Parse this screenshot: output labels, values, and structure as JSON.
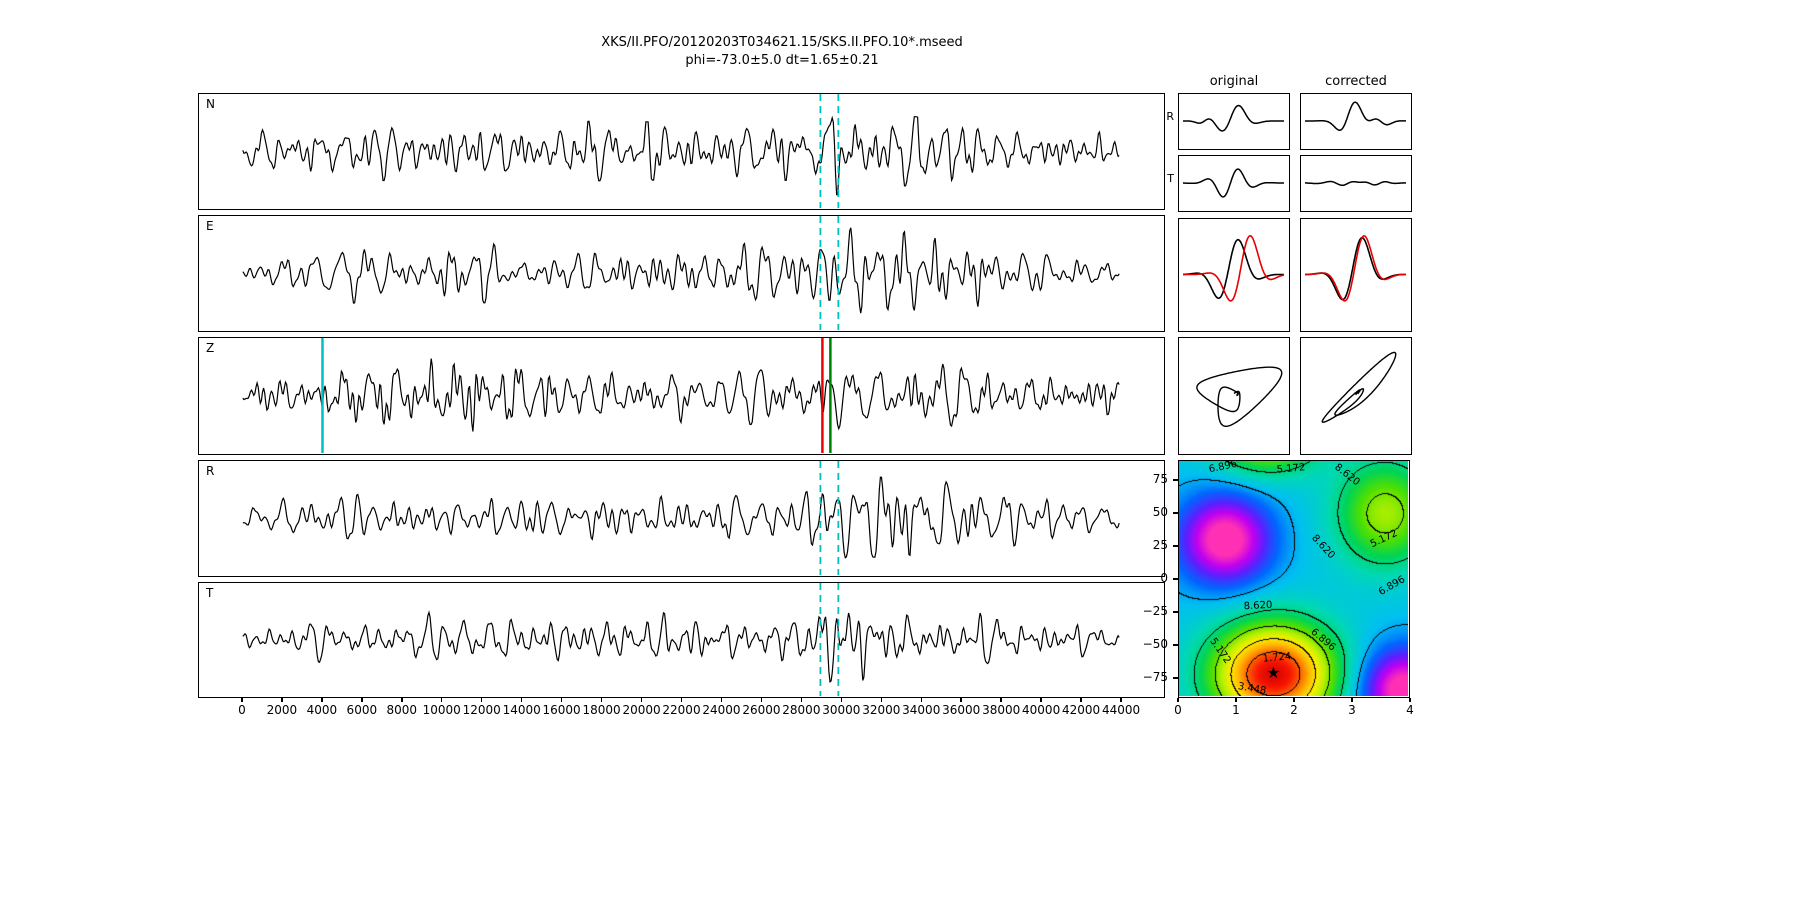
{
  "title": {
    "line1": "XKS/II.PFO/20120203T034621.15/SKS.II.PFO.10*.mseed",
    "line2": "phi=-73.0±5.0 dt=1.65±0.21"
  },
  "colors": {
    "cyan": "#00bfbf",
    "red": "#f20000",
    "green": "#008000",
    "trace": "#000000",
    "compare_red": "#e60000"
  },
  "chart_data": {
    "type": "seismogram-splitting-analysis",
    "result": {
      "phi_deg": -73.0,
      "phi_err_deg": 5.0,
      "dt_s": 1.65,
      "dt_err_s": 0.21
    },
    "main_panels": {
      "xlim": [
        -2200,
        46200
      ],
      "xticks": [
        0,
        2000,
        4000,
        6000,
        8000,
        10000,
        12000,
        14000,
        16000,
        18000,
        20000,
        22000,
        24000,
        26000,
        28000,
        30000,
        32000,
        34000,
        36000,
        38000,
        40000,
        42000,
        44000
      ],
      "window": {
        "start": 29000,
        "end": 29900
      },
      "panels": [
        {
          "label": "N",
          "seed": 101,
          "envelope": [
            [
              0,
              0.45
            ],
            [
              1500,
              0.75
            ],
            [
              6000,
              0.85
            ],
            [
              12000,
              0.8
            ],
            [
              18000,
              0.85
            ],
            [
              24000,
              0.8
            ],
            [
              28500,
              0.85
            ],
            [
              29400,
              1.35
            ],
            [
              30500,
              1.15
            ],
            [
              33000,
              1.0
            ],
            [
              38000,
              0.85
            ],
            [
              42000,
              0.65
            ],
            [
              44000,
              0.5
            ]
          ],
          "markers": [
            {
              "x": 29000,
              "color": "cyan",
              "style": "dashed"
            },
            {
              "x": 29900,
              "color": "cyan",
              "style": "dashed"
            }
          ]
        },
        {
          "label": "E",
          "seed": 202,
          "envelope": [
            [
              0,
              0.4
            ],
            [
              3000,
              0.85
            ],
            [
              7000,
              1.0
            ],
            [
              12000,
              0.85
            ],
            [
              18000,
              0.8
            ],
            [
              24000,
              0.8
            ],
            [
              28800,
              0.95
            ],
            [
              29600,
              1.45
            ],
            [
              31500,
              1.35
            ],
            [
              33500,
              1.3
            ],
            [
              36000,
              1.0
            ],
            [
              40000,
              0.85
            ],
            [
              44000,
              0.45
            ]
          ],
          "markers": [
            {
              "x": 29000,
              "color": "cyan",
              "style": "dashed"
            },
            {
              "x": 29900,
              "color": "cyan",
              "style": "dashed"
            }
          ]
        },
        {
          "label": "Z",
          "seed": 303,
          "envelope": [
            [
              0,
              0.45
            ],
            [
              3600,
              0.6
            ],
            [
              4200,
              1.2
            ],
            [
              6000,
              1.15
            ],
            [
              9000,
              1.25
            ],
            [
              12500,
              1.6
            ],
            [
              14000,
              1.45
            ],
            [
              16000,
              1.0
            ],
            [
              20000,
              0.85
            ],
            [
              25000,
              0.8
            ],
            [
              29000,
              1.0
            ],
            [
              31000,
              1.05
            ],
            [
              35000,
              0.9
            ],
            [
              40000,
              0.8
            ],
            [
              44000,
              0.5
            ]
          ],
          "markers": [
            {
              "x": 4000,
              "color": "cyan",
              "style": "solid"
            },
            {
              "x": 29100,
              "color": "red",
              "style": "solid"
            },
            {
              "x": 29500,
              "color": "green",
              "style": "solid"
            }
          ]
        },
        {
          "label": "R",
          "seed": 404,
          "envelope": [
            [
              0,
              0.4
            ],
            [
              4000,
              0.75
            ],
            [
              10000,
              0.85
            ],
            [
              16000,
              0.75
            ],
            [
              22000,
              0.7
            ],
            [
              27000,
              0.75
            ],
            [
              29200,
              1.1
            ],
            [
              30000,
              1.5
            ],
            [
              31500,
              1.3
            ],
            [
              33500,
              1.65
            ],
            [
              35500,
              1.2
            ],
            [
              38000,
              0.9
            ],
            [
              41000,
              0.75
            ],
            [
              44000,
              0.4
            ]
          ],
          "markers": [
            {
              "x": 29000,
              "color": "cyan",
              "style": "dashed"
            },
            {
              "x": 29900,
              "color": "cyan",
              "style": "dashed"
            }
          ]
        },
        {
          "label": "T",
          "seed": 505,
          "envelope": [
            [
              0,
              0.4
            ],
            [
              4000,
              0.7
            ],
            [
              10000,
              0.8
            ],
            [
              16000,
              0.85
            ],
            [
              22000,
              0.75
            ],
            [
              28000,
              0.8
            ],
            [
              29400,
              1.4
            ],
            [
              30800,
              1.25
            ],
            [
              33000,
              0.9
            ],
            [
              36000,
              0.8
            ],
            [
              40000,
              0.7
            ],
            [
              44000,
              0.4
            ]
          ],
          "markers": [
            {
              "x": 29000,
              "color": "cyan",
              "style": "dashed"
            },
            {
              "x": 29900,
              "color": "cyan",
              "style": "dashed"
            }
          ]
        }
      ]
    },
    "comparison": {
      "col_labels": [
        "original",
        "corrected"
      ],
      "row_labels": [
        "R",
        "T"
      ],
      "rt": {
        "R": {
          "original": [
            {
              "f": 2.4,
              "c": 0.5,
              "w": 0.17,
              "a": 0.8,
              "ph": 0.6
            },
            {
              "f": 3.0,
              "c": 0.22,
              "w": 0.1,
              "a": 0.18,
              "ph": 0
            }
          ],
          "corrected": [
            {
              "f": 2.4,
              "c": 0.46,
              "w": 0.15,
              "a": 0.95,
              "ph": 0.8
            },
            {
              "f": 2.8,
              "c": 0.75,
              "w": 0.12,
              "a": -0.25,
              "ph": 0
            }
          ]
        },
        "T": {
          "original": [
            {
              "f": 3.0,
              "c": 0.47,
              "w": 0.2,
              "a": 0.75,
              "ph": 0
            }
          ],
          "corrected": [
            {
              "f": 3.5,
              "c": 0.45,
              "w": 0.3,
              "a": 0.1,
              "ph": 0
            },
            {
              "f": 5.5,
              "c": 0.6,
              "w": 0.25,
              "a": 0.06,
              "ph": 1
            }
          ]
        }
      },
      "fastslow": {
        "original": {
          "black": [
            {
              "f": 2.0,
              "c": 0.48,
              "w": 0.2,
              "a": 0.9,
              "ph": 0.5
            }
          ],
          "red": [
            {
              "f": 2.0,
              "c": 0.6,
              "w": 0.2,
              "a": 1.0,
              "ph": 0.5
            }
          ]
        },
        "corrected": {
          "black": [
            {
              "f": 2.0,
              "c": 0.5,
              "w": 0.2,
              "a": 0.95,
              "ph": 0.5
            }
          ],
          "red": [
            {
              "f": 2.0,
              "c": 0.52,
              "w": 0.2,
              "a": 1.0,
              "ph": 0.5
            }
          ]
        }
      },
      "particle": {
        "original": {
          "f": 2.3,
          "phase": 1.35,
          "ry": 0.8,
          "env": 0.3,
          "f2": 4.1,
          "l2": 0.25,
          "l2y": 0.2,
          "p2": 1.2
        },
        "corrected": {
          "f": 2.3,
          "phase": 0.35,
          "ry": 0.95,
          "env": 0.3,
          "f2": 4.6,
          "l2": 0.1,
          "l2y": 0.12,
          "p2": 0.4
        }
      }
    },
    "energy_map": {
      "xticks": [
        0,
        1,
        2,
        3,
        4
      ],
      "ytick_values": [
        75,
        50,
        25,
        0,
        -25,
        -50,
        -75
      ],
      "ytick_labels": [
        "75",
        "50",
        "25",
        "0",
        "−25",
        "−50",
        "−75"
      ],
      "xlim": [
        0,
        4
      ],
      "ylim": [
        -90,
        90
      ],
      "star": {
        "dt": 1.65,
        "phi": -73
      },
      "contour_levels": [
        1.724,
        3.448,
        5.172,
        6.896,
        8.62
      ],
      "contour_labels": [
        {
          "t": "6.896",
          "x": 44,
          "y": 6,
          "r": -12
        },
        {
          "t": "5.172",
          "x": 112,
          "y": 8,
          "r": -5
        },
        {
          "t": "8.620",
          "x": 168,
          "y": 14,
          "r": 38
        },
        {
          "t": "8.620",
          "x": 144,
          "y": 86,
          "r": 47
        },
        {
          "t": "5.172",
          "x": 205,
          "y": 78,
          "r": -25
        },
        {
          "t": "6.896",
          "x": 213,
          "y": 125,
          "r": -30
        },
        {
          "t": "8.620",
          "x": 79,
          "y": 145,
          "r": -3
        },
        {
          "t": "6.896",
          "x": 144,
          "y": 179,
          "r": 40
        },
        {
          "t": "5.172",
          "x": 41,
          "y": 190,
          "r": 55
        },
        {
          "t": "1.724",
          "x": 98,
          "y": 197,
          "r": -5
        },
        {
          "t": "3.448",
          "x": 73,
          "y": 228,
          "r": 10
        }
      ],
      "field": {
        "base": 8.3,
        "clim": [
          0,
          12
        ],
        "terms": [
          {
            "x": 1.65,
            "y": -73,
            "sx": 1.05,
            "sy": 38,
            "a": -8.0
          },
          {
            "x": 1.5,
            "y": 115,
            "sx": 0.9,
            "sy": 30,
            "a": -5.5
          },
          {
            "x": 3.6,
            "y": 50,
            "sx": 0.85,
            "sy": 40,
            "a": -3.6
          },
          {
            "x": 0.8,
            "y": 30,
            "sx": 0.8,
            "sy": 34,
            "a": 4.2
          },
          {
            "x": 3.9,
            "y": -85,
            "sx": 0.75,
            "sy": 32,
            "a": 4.2
          }
        ]
      },
      "colormap": [
        [
          0.0,
          "#cc0000"
        ],
        [
          0.07,
          "#f81500"
        ],
        [
          0.15,
          "#ff6a00"
        ],
        [
          0.22,
          "#ffb400"
        ],
        [
          0.3,
          "#fdee00"
        ],
        [
          0.38,
          "#b4f000"
        ],
        [
          0.46,
          "#50e000"
        ],
        [
          0.54,
          "#00d455"
        ],
        [
          0.62,
          "#00d8b4"
        ],
        [
          0.7,
          "#00c0f0"
        ],
        [
          0.78,
          "#0066ff"
        ],
        [
          0.86,
          "#5a20ff"
        ],
        [
          0.93,
          "#c000f0"
        ],
        [
          1.0,
          "#ff30b4"
        ]
      ]
    }
  }
}
